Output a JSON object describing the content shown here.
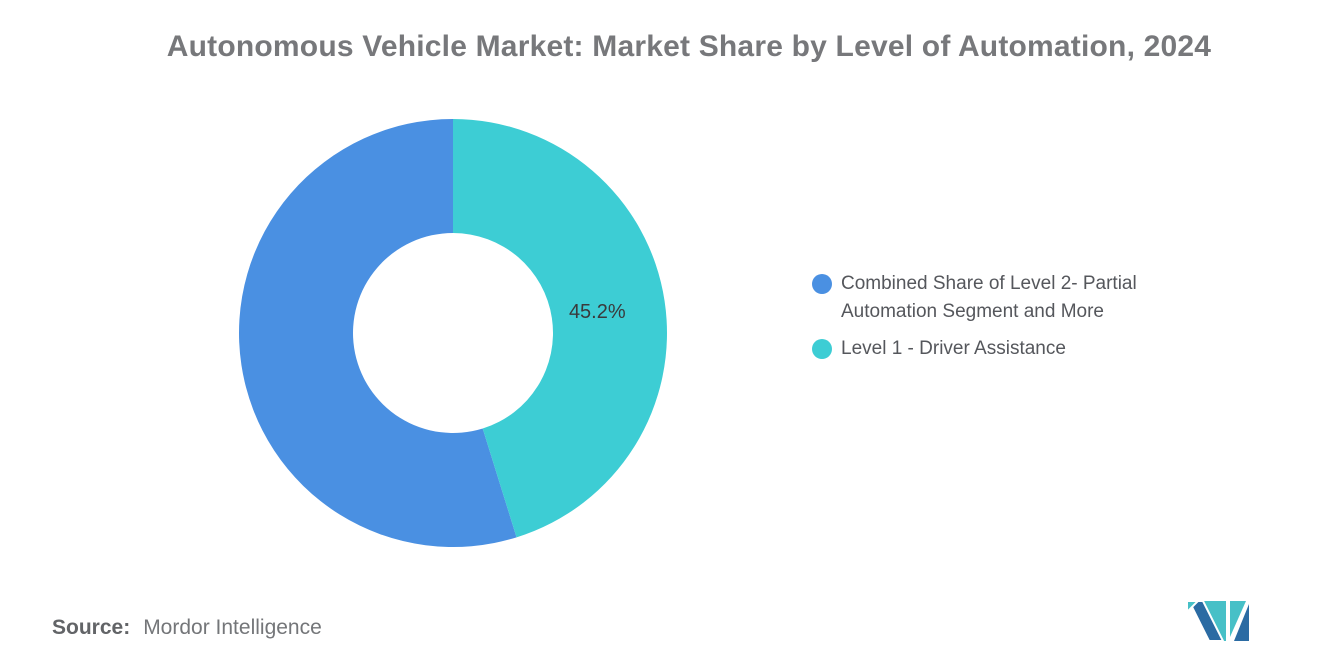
{
  "title": "Autonomous Vehicle Market: Market Share by Level of Automation, 2024",
  "chart_data": {
    "type": "pie",
    "subtype": "donut",
    "title": "Autonomous Vehicle Market: Market Share by Level of Automation, 2024",
    "categories": [
      "Combined Share of Level 2- Partial Automation Segment and More",
      "Level 1 - Driver Assistance"
    ],
    "values": [
      54.8,
      45.2
    ],
    "series": [
      {
        "name": "Combined Share of Level 2- Partial Automation Segment and More",
        "value": 54.8,
        "color": "#4A90E2",
        "data_label": ""
      },
      {
        "name": "Level 1 - Driver Assistance",
        "value": 45.2,
        "color": "#3DCDD4",
        "data_label": "45.2%"
      }
    ],
    "start_angle_deg": 0,
    "direction": "counterclockwise",
    "hole_ratio": 0.467,
    "data_label_color": "#3A3A3C",
    "legend_position": "right",
    "grid": false
  },
  "legend": {
    "items": [
      {
        "label": "Combined Share of Level 2- Partial Automation Segment and More",
        "color": "#4A90E2"
      },
      {
        "label": "Level 1 - Driver Assistance",
        "color": "#3DCDD4"
      }
    ]
  },
  "source": {
    "label": "Source:",
    "text": "Mordor Intelligence"
  },
  "logo": {
    "name": "mordor-intelligence-logo",
    "navy": "#2B6BA3",
    "teal": "#47C0C7"
  }
}
